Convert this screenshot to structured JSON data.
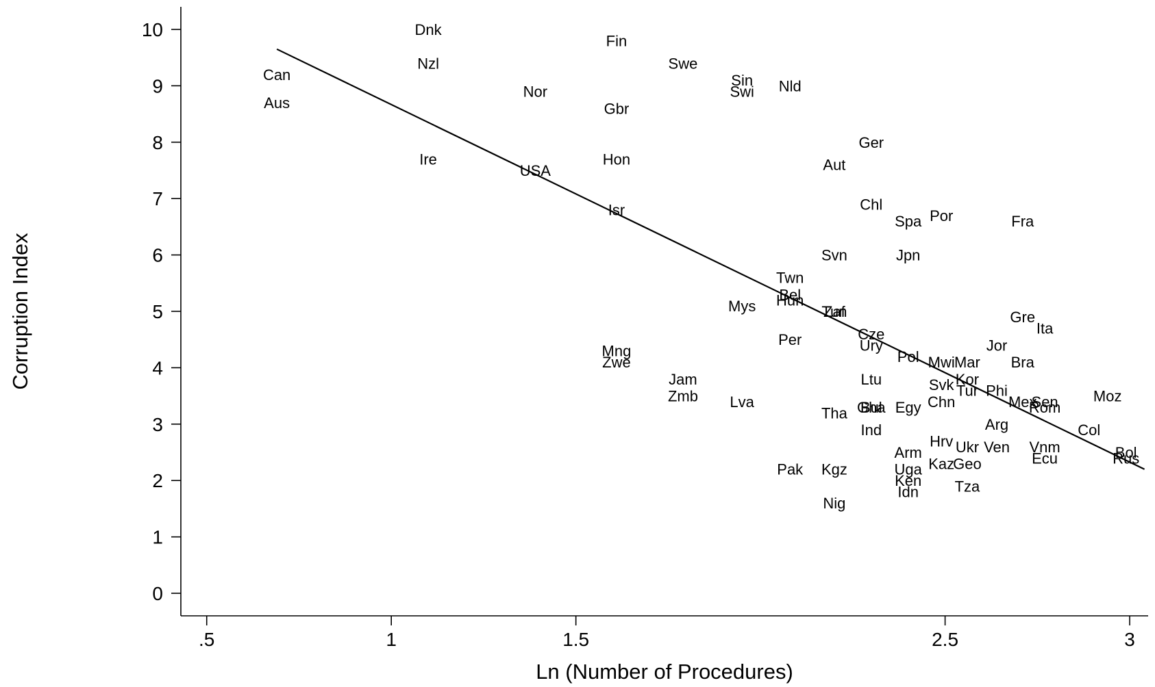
{
  "chart_data": {
    "type": "scatter",
    "title": "",
    "xlabel": "Ln (Number of Procedures)",
    "ylabel": "Corruption Index",
    "xlim": [
      0.43,
      3.05
    ],
    "ylim": [
      -0.4,
      10.4
    ],
    "xticks": [
      0.5,
      1,
      1.5,
      2.5,
      3
    ],
    "xtick_labels": [
      ".5",
      "1",
      "1.5",
      "2.5",
      "3"
    ],
    "yticks": [
      0,
      1,
      2,
      3,
      4,
      5,
      6,
      7,
      8,
      9,
      10
    ],
    "ytick_labels": [
      "0",
      "1",
      "2",
      "3",
      "4",
      "5",
      "6",
      "7",
      "8",
      "9",
      "10"
    ],
    "grid": false,
    "legend": "none",
    "marker": "country-code labels",
    "fit_line": {
      "x": [
        0.69,
        3.04
      ],
      "y": [
        9.65,
        2.2
      ]
    },
    "points": [
      {
        "label": "Dnk",
        "x": 1.1,
        "y": 10.0
      },
      {
        "label": "Fin",
        "x": 1.61,
        "y": 9.8
      },
      {
        "label": "Nzl",
        "x": 1.1,
        "y": 9.4
      },
      {
        "label": "Swe",
        "x": 1.79,
        "y": 9.4
      },
      {
        "label": "Can",
        "x": 0.69,
        "y": 9.2
      },
      {
        "label": "Sin",
        "x": 1.95,
        "y": 9.1
      },
      {
        "label": "Swi",
        "x": 1.95,
        "y": 8.9
      },
      {
        "label": "Nld",
        "x": 2.08,
        "y": 9.0
      },
      {
        "label": "Nor",
        "x": 1.39,
        "y": 8.9
      },
      {
        "label": "Aus",
        "x": 0.69,
        "y": 8.7
      },
      {
        "label": "Gbr",
        "x": 1.61,
        "y": 8.6
      },
      {
        "label": "Ger",
        "x": 2.3,
        "y": 8.0
      },
      {
        "label": "Ire",
        "x": 1.1,
        "y": 7.7
      },
      {
        "label": "Hon",
        "x": 1.61,
        "y": 7.7
      },
      {
        "label": "Aut",
        "x": 2.2,
        "y": 7.6
      },
      {
        "label": "USA",
        "x": 1.39,
        "y": 7.5
      },
      {
        "label": "Chl",
        "x": 2.3,
        "y": 6.9
      },
      {
        "label": "Isr",
        "x": 1.61,
        "y": 6.8
      },
      {
        "label": "Por",
        "x": 2.49,
        "y": 6.7
      },
      {
        "label": "Spa",
        "x": 2.4,
        "y": 6.6
      },
      {
        "label": "Fra",
        "x": 2.71,
        "y": 6.6
      },
      {
        "label": "Svn",
        "x": 2.2,
        "y": 6.0
      },
      {
        "label": "Jpn",
        "x": 2.4,
        "y": 6.0
      },
      {
        "label": "Twn",
        "x": 2.08,
        "y": 5.6
      },
      {
        "label": "Bel",
        "x": 2.08,
        "y": 5.3
      },
      {
        "label": "Hun",
        "x": 2.08,
        "y": 5.2
      },
      {
        "label": "Mys",
        "x": 1.95,
        "y": 5.1
      },
      {
        "label": "Tun",
        "x": 2.2,
        "y": 5.0
      },
      {
        "label": "Zaf",
        "x": 2.2,
        "y": 5.0
      },
      {
        "label": "Gre",
        "x": 2.71,
        "y": 4.9
      },
      {
        "label": "Ita",
        "x": 2.77,
        "y": 4.7
      },
      {
        "label": "Cze",
        "x": 2.3,
        "y": 4.6
      },
      {
        "label": "Per",
        "x": 2.08,
        "y": 4.5
      },
      {
        "label": "Ury",
        "x": 2.3,
        "y": 4.4
      },
      {
        "label": "Jor",
        "x": 2.64,
        "y": 4.4
      },
      {
        "label": "Mng",
        "x": 1.61,
        "y": 4.3
      },
      {
        "label": "Pol",
        "x": 2.4,
        "y": 4.2
      },
      {
        "label": "Mwi",
        "x": 2.49,
        "y": 4.1
      },
      {
        "label": "Mar",
        "x": 2.56,
        "y": 4.1
      },
      {
        "label": "Bra",
        "x": 2.71,
        "y": 4.1
      },
      {
        "label": "Zwe",
        "x": 1.61,
        "y": 4.1
      },
      {
        "label": "Jam",
        "x": 1.79,
        "y": 3.8
      },
      {
        "label": "Ltu",
        "x": 2.3,
        "y": 3.8
      },
      {
        "label": "Kor",
        "x": 2.56,
        "y": 3.8
      },
      {
        "label": "Svk",
        "x": 2.49,
        "y": 3.7
      },
      {
        "label": "Tur",
        "x": 2.56,
        "y": 3.6
      },
      {
        "label": "Phi",
        "x": 2.64,
        "y": 3.6
      },
      {
        "label": "Moz",
        "x": 2.94,
        "y": 3.5
      },
      {
        "label": "Zmb",
        "x": 1.79,
        "y": 3.5
      },
      {
        "label": "Lva",
        "x": 1.95,
        "y": 3.4
      },
      {
        "label": "Chn",
        "x": 2.49,
        "y": 3.4
      },
      {
        "label": "Mex",
        "x": 2.71,
        "y": 3.4
      },
      {
        "label": "Sen",
        "x": 2.77,
        "y": 3.4
      },
      {
        "label": "Rom",
        "x": 2.77,
        "y": 3.3
      },
      {
        "label": "Gha",
        "x": 2.3,
        "y": 3.3
      },
      {
        "label": "Bul",
        "x": 2.3,
        "y": 3.3
      },
      {
        "label": "Egy",
        "x": 2.4,
        "y": 3.3
      },
      {
        "label": "Tha",
        "x": 2.2,
        "y": 3.2
      },
      {
        "label": "Arg",
        "x": 2.64,
        "y": 3.0
      },
      {
        "label": "Ind",
        "x": 2.3,
        "y": 2.9
      },
      {
        "label": "Col",
        "x": 2.89,
        "y": 2.9
      },
      {
        "label": "Hrv",
        "x": 2.49,
        "y": 2.7
      },
      {
        "label": "Ukr",
        "x": 2.56,
        "y": 2.6
      },
      {
        "label": "Ven",
        "x": 2.64,
        "y": 2.6
      },
      {
        "label": "Vnm",
        "x": 2.77,
        "y": 2.6
      },
      {
        "label": "Bol",
        "x": 2.99,
        "y": 2.5
      },
      {
        "label": "Arm",
        "x": 2.4,
        "y": 2.5
      },
      {
        "label": "Rus",
        "x": 2.99,
        "y": 2.4
      },
      {
        "label": "Ecu",
        "x": 2.77,
        "y": 2.4
      },
      {
        "label": "Kaz",
        "x": 2.49,
        "y": 2.3
      },
      {
        "label": "Geo",
        "x": 2.56,
        "y": 2.3
      },
      {
        "label": "Uga",
        "x": 2.4,
        "y": 2.2
      },
      {
        "label": "Pak",
        "x": 2.08,
        "y": 2.2
      },
      {
        "label": "Kgz",
        "x": 2.2,
        "y": 2.2
      },
      {
        "label": "Ken",
        "x": 2.4,
        "y": 2.0
      },
      {
        "label": "Tza",
        "x": 2.56,
        "y": 1.9
      },
      {
        "label": "Idn",
        "x": 2.4,
        "y": 1.8
      },
      {
        "label": "Nig",
        "x": 2.2,
        "y": 1.6
      }
    ]
  }
}
